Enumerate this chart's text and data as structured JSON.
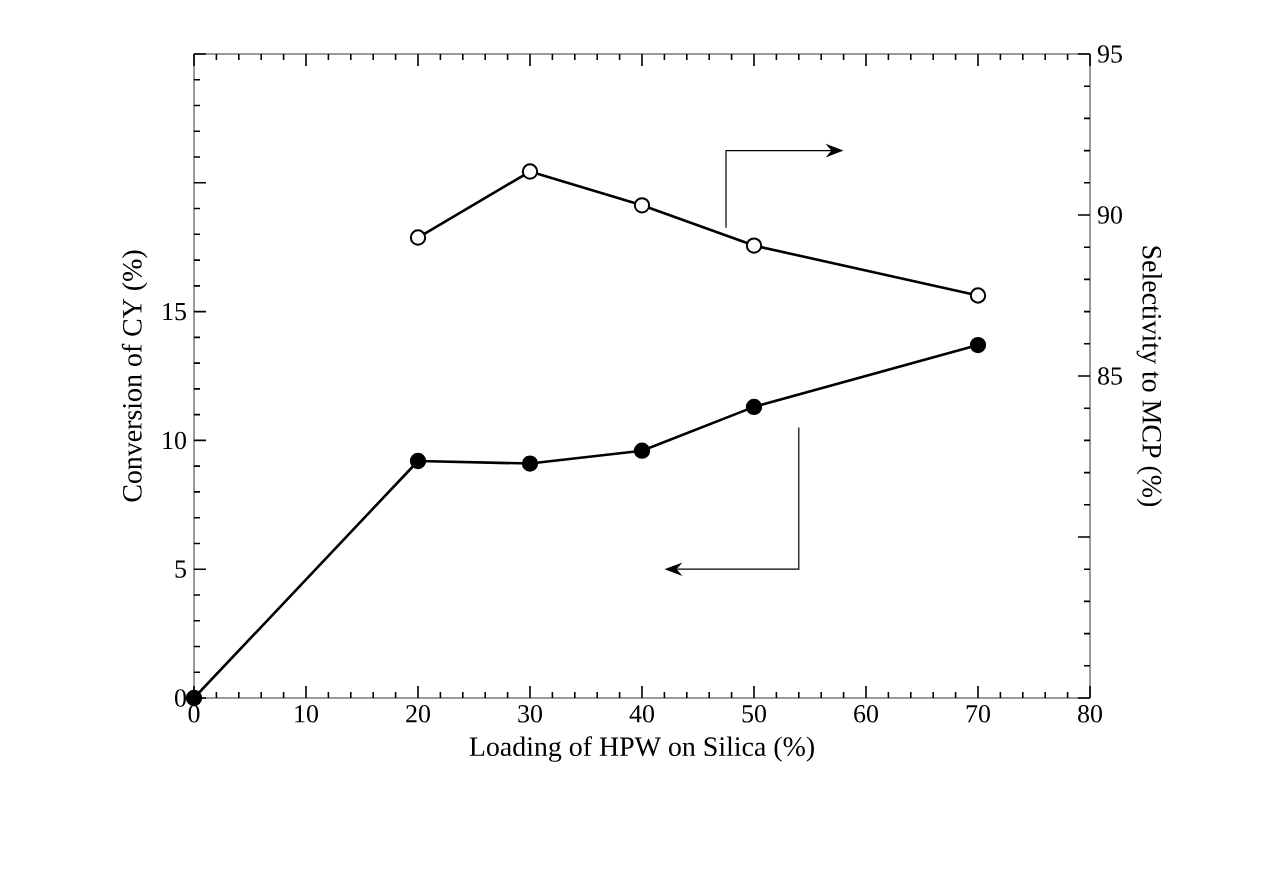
{
  "chart_data": {
    "type": "line",
    "xlabel": "Loading of HPW on Silica (%)",
    "ylabel": "Conversion of CY (%)",
    "y2label": "Selectivity to MCP (%)",
    "x": [
      0,
      20,
      30,
      40,
      50,
      70
    ],
    "series": [
      {
        "color": "#000000",
        "values": [
          0,
          9.2,
          9.1,
          9.6,
          11.3,
          13.7
        ]
      },
      {
        "color": "#000000",
        "axis": "y2",
        "values": [
          null,
          89.3,
          91.35,
          90.3,
          89.05,
          87.5
        ]
      }
    ],
    "xlim": [
      0,
      80
    ],
    "xticks": [
      0,
      10,
      20,
      30,
      40,
      50,
      60,
      70,
      80
    ],
    "ylim": [
      0,
      25
    ],
    "yticks": [
      0,
      5,
      10,
      15,
      {
        "value": 20,
        "label": null
      },
      {
        "value": 25,
        "label": null
      }
    ],
    "y2lim": [
      75,
      95
    ],
    "y2ticks": [
      {
        "value": 75,
        "label": null
      },
      {
        "value": 80,
        "label": null
      },
      85,
      90,
      95
    ],
    "marker": "circle",
    "line_style": "solid",
    "grid": false
  }
}
